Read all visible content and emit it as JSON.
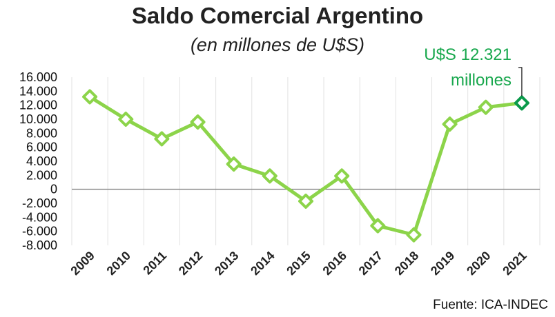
{
  "chart_data": {
    "type": "line",
    "title": "Saldo Comercial Argentino",
    "subtitle": "(en millones de U$S)",
    "xlabel": "",
    "ylabel": "",
    "categories": [
      "2009",
      "2010",
      "2011",
      "2012",
      "2013",
      "2014",
      "2015",
      "2016",
      "2017",
      "2018",
      "2019",
      "2020",
      "2021"
    ],
    "series": [
      {
        "values": [
          13200,
          10000,
          7200,
          9600,
          3600,
          1900,
          -1700,
          1900,
          -5200,
          -6500,
          9300,
          11700,
          12321
        ]
      }
    ],
    "ylim": [
      -8000,
      16000
    ],
    "yticks": [
      "16.000",
      "14.000",
      "12.000",
      "10.000",
      "8.000",
      "6.000",
      "4.000",
      "2.000",
      "0",
      "-2.000",
      "-4.000",
      "-6.000",
      "-8.000"
    ],
    "ytick_values": [
      16000,
      14000,
      12000,
      10000,
      8000,
      6000,
      4000,
      2000,
      0,
      -2000,
      -4000,
      -6000,
      -8000
    ],
    "annotation": {
      "line1": "U$S 12.321",
      "line2": "millones"
    },
    "grid": "vertical",
    "colors": {
      "line": "#8cd44a",
      "highlight": "#0a9a4a",
      "annotation": "#19a84e",
      "zero_line": "#888888",
      "grid": "#e2e2e2"
    }
  },
  "source": "Fuente: ICA-INDEC"
}
